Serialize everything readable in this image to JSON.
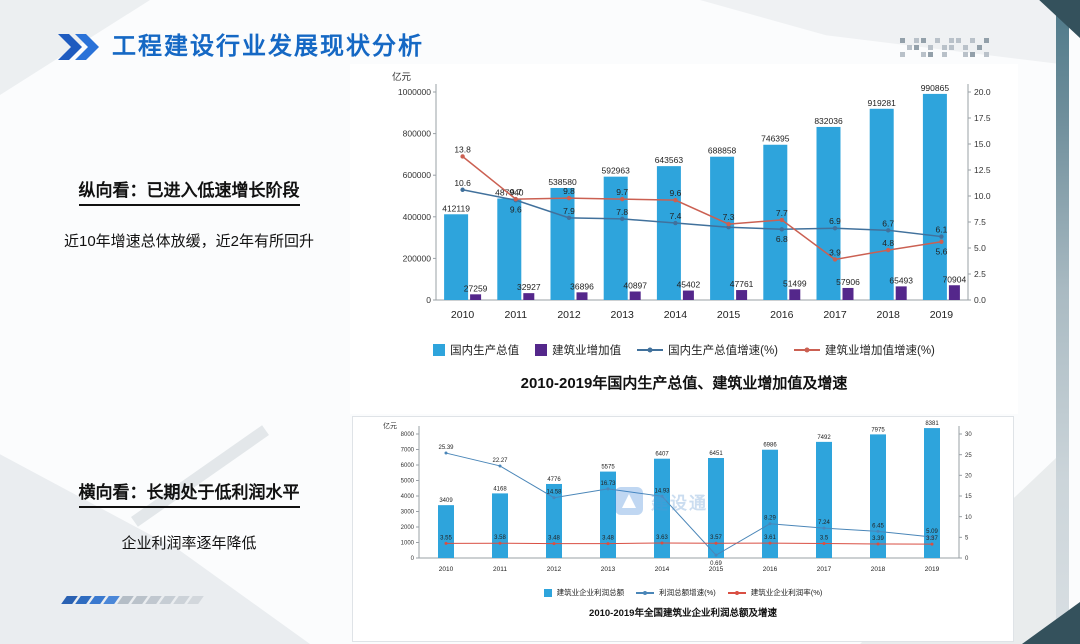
{
  "slide": {
    "title": "工程建设行业发展现状分析",
    "watermark": "建设通",
    "notes": [
      {
        "heading": "纵向看：已进入低速增长阶段",
        "body": "近10年增速总体放缓，近2年有所回升"
      },
      {
        "heading": "横向看：长期处于低利润水平",
        "body": "企业利润率逐年降低"
      }
    ]
  },
  "chart_data": [
    {
      "type": "combo_bar_line",
      "title": "2010-2019年国内生产总值、建筑业增加值及增速",
      "unit_label": "亿元",
      "legend_position": "bottom",
      "grid": false,
      "categories": [
        "2010",
        "2011",
        "2012",
        "2013",
        "2014",
        "2015",
        "2016",
        "2017",
        "2018",
        "2019"
      ],
      "left_axis": {
        "min": 0,
        "max": 1000000,
        "ticks": [
          "0",
          "200000",
          "400000",
          "600000",
          "800000",
          "1000000"
        ]
      },
      "right_axis": {
        "min": 0,
        "max": 20,
        "ticks": [
          "0.0",
          "2.5",
          "5.0",
          "7.5",
          "10.0",
          "12.5",
          "15.0",
          "17.5",
          "20.0"
        ]
      },
      "series": [
        {
          "name": "国内生产总值",
          "kind": "bar",
          "axis": "left",
          "color": "#2ea4dc",
          "values": [
            412119,
            487940,
            538580,
            592963,
            643563,
            688858,
            746395,
            832036,
            919281,
            990865
          ]
        },
        {
          "name": "建筑业增加值",
          "kind": "bar",
          "axis": "left",
          "color": "#54278b",
          "values": [
            27259,
            32927,
            36896,
            40897,
            45402,
            47761,
            51499,
            57906,
            65493,
            70904
          ]
        },
        {
          "name": "国内生产总值增速(%)",
          "kind": "line",
          "axis": "right",
          "color": "#41719c",
          "values": [
            10.6,
            9.6,
            7.9,
            7.8,
            7.4,
            7.0,
            6.8,
            6.9,
            6.7,
            6.1
          ],
          "labels": [
            "10.6",
            "9.6",
            "7.9",
            "7.8",
            "7.4",
            "",
            "6.8",
            "6.9",
            "6.7",
            "6.1"
          ],
          "label_pos": [
            "above",
            "below",
            "above",
            "above",
            "above",
            "above",
            "below",
            "above",
            "above",
            "above"
          ]
        },
        {
          "name": "建筑业增加值增速(%)",
          "kind": "line",
          "axis": "right",
          "color": "#cb6052",
          "values": [
            13.8,
            9.7,
            9.8,
            9.7,
            9.6,
            7.3,
            7.7,
            3.9,
            4.8,
            5.6
          ],
          "labels": [
            "13.8",
            "9.7",
            "9.8",
            "9.7",
            "9.6",
            "7.3",
            "7.7",
            "3.9",
            "4.8",
            "5.6"
          ],
          "label_pos": [
            "above",
            "above",
            "above",
            "above",
            "above",
            "above",
            "above",
            "above",
            "above",
            "below"
          ]
        }
      ]
    },
    {
      "type": "combo_bar_line",
      "title": "2010-2019年全国建筑业企业利润总额及增速",
      "unit_label": "亿元",
      "legend_position": "bottom",
      "grid": false,
      "categories": [
        "2010",
        "2011",
        "2012",
        "2013",
        "2014",
        "2015",
        "2016",
        "2017",
        "2018",
        "2019"
      ],
      "left_axis": {
        "min": 0,
        "max": 8000,
        "ticks": [
          "0",
          "1000",
          "2000",
          "3000",
          "4000",
          "5000",
          "6000",
          "7000",
          "8000"
        ]
      },
      "right_axis": {
        "min": 0,
        "max": 30,
        "ticks": [
          "0",
          "5",
          "10",
          "15",
          "20",
          "25",
          "30"
        ]
      },
      "series": [
        {
          "name": "建筑业企业利润总额",
          "kind": "bar",
          "axis": "left",
          "color": "#2ea4dc",
          "values": [
            3409,
            4168,
            4776,
            5575,
            6407,
            6451,
            6986,
            7492,
            7975,
            8381
          ]
        },
        {
          "name": "利润总额增速(%)",
          "kind": "line",
          "axis": "right",
          "color": "#4a86b8",
          "values": [
            25.39,
            22.27,
            14.58,
            16.73,
            14.93,
            0.69,
            8.29,
            7.24,
            6.45,
            5.09
          ],
          "labels": [
            "25.39",
            "22.27",
            "14.58",
            "16.73",
            "14.93",
            "0.69",
            "8.29",
            "7.24",
            "6.45",
            "5.09"
          ],
          "label_pos": [
            "above",
            "above",
            "above",
            "above",
            "above",
            "below",
            "above",
            "above",
            "above",
            "above"
          ]
        },
        {
          "name": "建筑业企业利润率(%)",
          "kind": "line",
          "axis": "right",
          "color": "#d94f43",
          "values": [
            3.55,
            3.58,
            3.48,
            3.48,
            3.63,
            3.57,
            3.61,
            3.5,
            3.39,
            3.37
          ],
          "labels": [
            "3.55",
            "3.58",
            "3.48",
            "3.48",
            "3.63",
            "3.57",
            "3.61",
            "3.5",
            "3.39",
            "3.37"
          ],
          "label_pos": [
            "above",
            "above",
            "above",
            "above",
            "above",
            "above",
            "above",
            "above",
            "above",
            "above"
          ]
        }
      ]
    }
  ]
}
